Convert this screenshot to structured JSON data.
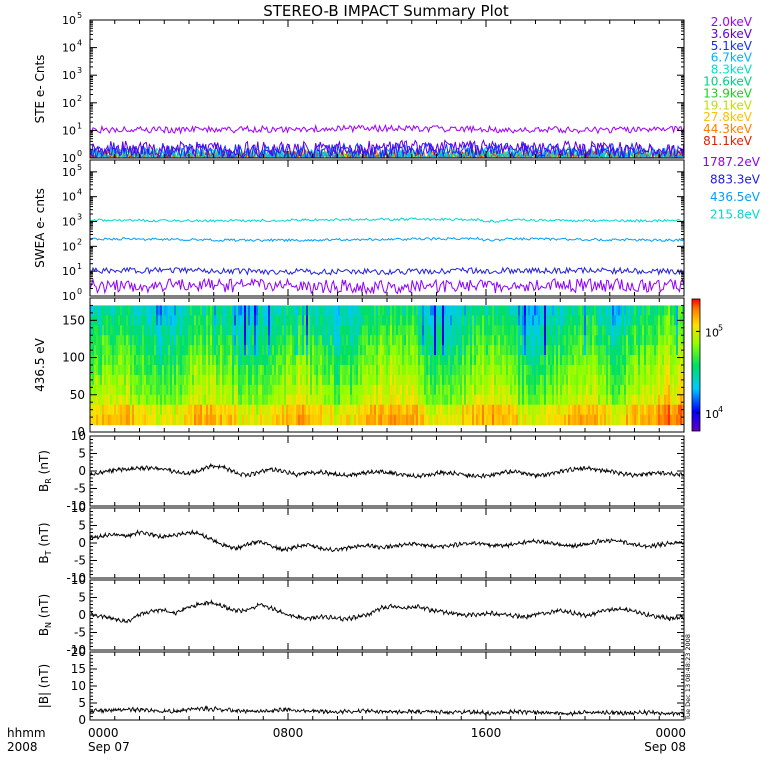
{
  "title": "STEREO-B IMPACT Summary Plot",
  "time_axis": {
    "row1_label": "hhmm",
    "row2_label": "2008",
    "ticks": [
      {
        "hours": 0,
        "line1": "0000",
        "line2": "Sep 07"
      },
      {
        "hours": 8,
        "line1": "0800",
        "line2": ""
      },
      {
        "hours": 16,
        "line1": "1600",
        "line2": ""
      },
      {
        "hours": 24,
        "line1": "0000",
        "line2": "Sep 08"
      }
    ],
    "minor_tick_hours": 1,
    "range_hours": [
      0,
      24
    ]
  },
  "timestamp_note": "Tue Dec 13 08:48:23 2008",
  "colors": {
    "ste": {
      "2.0keV": "#a000ff",
      "3.6keV": "#6000e0",
      "5.1keV": "#1030ff",
      "6.7keV": "#00b0ff",
      "8.3keV": "#00e0d0",
      "10.6keV": "#00d080",
      "13.9keV": "#20d020",
      "19.1keV": "#c0e000",
      "27.8keV": "#ffc000",
      "44.3keV": "#ff8000",
      "81.1keV": "#e02000"
    },
    "swea": {
      "1787.2eV": "#9000ff",
      "883.3eV": "#2020e0",
      "436.5eV": "#00a0ff",
      "215.8eV": "#00d8d0"
    },
    "trace": "#000000"
  },
  "chart_data": [
    {
      "id": "ste",
      "type": "line",
      "ylabel": "STE e- Cnts",
      "yscale": "log",
      "ylim": [
        1,
        100000
      ],
      "ytick_exponents": [
        0,
        1,
        2,
        3,
        4,
        5
      ],
      "series": [
        {
          "name": "2.0keV",
          "level": 11
        },
        {
          "name": "3.6keV",
          "level": 2.2
        },
        {
          "name": "5.1keV",
          "level": 1.8
        },
        {
          "name": "6.7keV",
          "level": 1.3
        },
        {
          "name": "8.3keV",
          "level": 1.2
        },
        {
          "name": "10.6keV",
          "level": 1.0
        },
        {
          "name": "13.9keV",
          "level": 1.0
        },
        {
          "name": "19.1keV",
          "level": 1.0
        },
        {
          "name": "27.8keV",
          "level": 1.0
        },
        {
          "name": "44.3keV",
          "level": 1.0
        },
        {
          "name": "81.1keV",
          "level": 1.0
        }
      ]
    },
    {
      "id": "swea",
      "type": "line",
      "ylabel": "SWEA e- cnts",
      "yscale": "log",
      "ylim": [
        1,
        300000
      ],
      "ytick_exponents": [
        0,
        1,
        2,
        3,
        4,
        5
      ],
      "series": [
        {
          "name": "1787.2eV",
          "level": 2.5
        },
        {
          "name": "883.3eV",
          "level": 10
        },
        {
          "name": "436.5eV",
          "level": 190
        },
        {
          "name": "215.8eV",
          "level": 1150
        }
      ]
    },
    {
      "id": "pad",
      "type": "heatmap",
      "ylabel": "436.5 eV",
      "ylim": [
        0,
        180
      ],
      "yticks": [
        0,
        50,
        100,
        150
      ],
      "data_yrange": [
        10,
        170
      ],
      "colorbar": {
        "scale": "log",
        "range": [
          6000,
          250000
        ],
        "ticks": [
          {
            "value": 10000,
            "label": "10^4"
          },
          {
            "value": 100000,
            "label": "10^5"
          }
        ]
      }
    },
    {
      "id": "br",
      "type": "line",
      "ylabel_main": "B",
      "ylabel_sub": "R",
      "ylabel_unit": " (nT)",
      "ylim": [
        -10,
        10
      ],
      "yticks": [
        -10,
        -5,
        0,
        5,
        10
      ],
      "series": [
        {
          "values": [
            -1.0,
            -0.5,
            0.2,
            0.5,
            0.8,
            0.9,
            0.5,
            -0.2,
            -0.8,
            0.0,
            1.5,
            1.0,
            -0.5,
            -1.2,
            -0.2,
            0.5,
            -0.3,
            -1.0,
            -0.6,
            -0.3,
            -0.8,
            -1.2,
            -0.9,
            -0.4,
            -0.2,
            -0.6,
            -1.2,
            -1.6,
            -1.0,
            -0.4,
            -0.5,
            -1.2,
            -1.6,
            -1.2,
            -0.5,
            -0.2,
            -0.8,
            -1.4,
            -0.8,
            0.0,
            0.6,
            0.8,
            0.3,
            -0.2,
            -0.8,
            -1.3,
            -0.8,
            -0.5,
            -0.9,
            -1.2
          ]
        }
      ]
    },
    {
      "id": "bt",
      "type": "line",
      "ylabel_main": "B",
      "ylabel_sub": "T",
      "ylabel_unit": " (nT)",
      "ylim": [
        -10,
        10
      ],
      "yticks": [
        -10,
        -5,
        0,
        5,
        10
      ],
      "series": [
        {
          "values": [
            1.5,
            2.0,
            2.5,
            2.0,
            3.0,
            2.5,
            1.8,
            2.2,
            3.0,
            2.8,
            1.0,
            -0.5,
            -1.5,
            -0.5,
            0.5,
            -1.0,
            -2.0,
            -1.0,
            -0.5,
            -1.5,
            -2.0,
            -1.5,
            -1.0,
            -0.8,
            -1.2,
            -1.0,
            -0.5,
            -0.2,
            -0.8,
            -1.0,
            -0.6,
            -0.2,
            0.0,
            -0.5,
            -0.8,
            -0.4,
            0.2,
            0.5,
            0.0,
            -0.5,
            -0.8,
            -0.3,
            0.5,
            0.8,
            0.2,
            -0.5,
            -1.0,
            -0.5,
            0.0,
            0.3
          ]
        }
      ]
    },
    {
      "id": "bn",
      "type": "line",
      "ylabel_main": "B",
      "ylabel_sub": "N",
      "ylabel_unit": " (nT)",
      "ylim": [
        -10,
        10
      ],
      "yticks": [
        -10,
        -5,
        0,
        5,
        10
      ],
      "series": [
        {
          "values": [
            0.5,
            -0.5,
            -1.0,
            -2.0,
            0.0,
            1.0,
            1.5,
            0.5,
            2.0,
            3.0,
            3.5,
            2.5,
            1.0,
            1.5,
            3.0,
            2.0,
            0.5,
            -0.5,
            -1.0,
            -0.5,
            -0.8,
            -1.2,
            -0.6,
            0.0,
            2.0,
            2.5,
            2.0,
            2.5,
            1.5,
            1.0,
            0.5,
            0.0,
            0.2,
            0.5,
            0.2,
            -0.2,
            -0.5,
            0.3,
            0.8,
            1.2,
            0.5,
            -0.3,
            0.8,
            1.5,
            1.8,
            1.0,
            0.0,
            -0.5,
            -1.0,
            -0.5
          ]
        }
      ]
    },
    {
      "id": "bmag",
      "type": "line",
      "ylabel_main": "|B| (nT)",
      "ylim": [
        0,
        20
      ],
      "yticks": [
        0,
        5,
        10,
        15,
        20
      ],
      "series": [
        {
          "values": [
            2.5,
            2.8,
            3.0,
            3.2,
            3.0,
            2.8,
            2.5,
            2.6,
            3.0,
            3.5,
            3.3,
            3.0,
            2.8,
            2.6,
            2.5,
            2.8,
            3.0,
            2.9,
            2.7,
            2.6,
            2.4,
            2.5,
            2.6,
            2.5,
            2.4,
            2.3,
            2.4,
            2.5,
            2.4,
            2.2,
            2.3,
            2.4,
            2.2,
            2.0,
            2.2,
            2.4,
            2.3,
            2.2,
            2.0,
            1.8,
            2.0,
            2.2,
            2.3,
            2.2,
            2.0,
            2.1,
            2.2,
            2.0,
            1.9,
            2.0
          ]
        }
      ]
    }
  ]
}
